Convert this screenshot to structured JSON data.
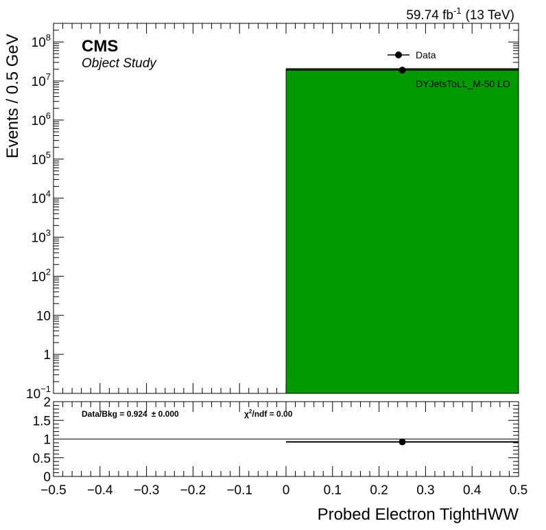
{
  "header": {
    "lumi": "59.74 fb",
    "lumi_exp": "-1",
    "energy": "(13 TeV)",
    "experiment": "CMS",
    "subtitle": "Object Study"
  },
  "chart_data": [
    {
      "type": "bar",
      "panel": "main",
      "ylabel": "Events / 0.5 GeV",
      "yscale": "log",
      "ylim": [
        0.1,
        300000000
      ],
      "xlim": [
        -0.5,
        0.5
      ],
      "ytick_labels": [
        {
          "value": 0.1,
          "base": "10",
          "exp": "−1"
        },
        {
          "value": 1,
          "base": "1",
          "exp": ""
        },
        {
          "value": 10,
          "base": "10",
          "exp": ""
        },
        {
          "value": 100,
          "base": "10",
          "exp": "2"
        },
        {
          "value": 1000,
          "base": "10",
          "exp": "3"
        },
        {
          "value": 10000,
          "base": "10",
          "exp": "4"
        },
        {
          "value": 100000,
          "base": "10",
          "exp": "5"
        },
        {
          "value": 1000000,
          "base": "10",
          "exp": "6"
        },
        {
          "value": 10000000,
          "base": "10",
          "exp": "7"
        },
        {
          "value": 100000000,
          "base": "10",
          "exp": "8"
        }
      ],
      "series": [
        {
          "name": "Data",
          "kind": "points",
          "color": "#000000",
          "x": [
            0.25
          ],
          "y": [
            19000000
          ],
          "xerr": [
            0.25
          ]
        },
        {
          "name": "DYJetsToLL_M-50 LO",
          "kind": "stack",
          "color": "#009900",
          "bins": [
            [
              0.0,
              0.5
            ]
          ],
          "values": [
            20500000
          ]
        }
      ],
      "legend": {
        "placement": "top-right",
        "entries": [
          "Data",
          "DYJetsToLL_M-50 LO"
        ]
      }
    },
    {
      "type": "scatter",
      "panel": "ratio",
      "xlabel": "Probed Electron TightHWW",
      "xlim": [
        -0.5,
        0.5
      ],
      "ylim": [
        0,
        2
      ],
      "xticks": [
        -0.5,
        -0.4,
        -0.3,
        -0.2,
        -0.1,
        0,
        0.1,
        0.2,
        0.3,
        0.4,
        0.5
      ],
      "xtick_labels": [
        "−0.5",
        "−0.4",
        "−0.3",
        "−0.2",
        "−0.1",
        "0",
        "0.1",
        "0.2",
        "0.3",
        "0.4",
        "0.5"
      ],
      "yticks": [
        0,
        0.5,
        1,
        1.5,
        2
      ],
      "ytick_labels": [
        "0",
        "0.5",
        "1",
        "1.5",
        "2"
      ],
      "reference_line": 1,
      "points": [
        {
          "x": 0.25,
          "y": 0.924,
          "xerr": 0.25
        }
      ],
      "annotations": {
        "ratio_text": "Data/Bkg = 0.924",
        "ratio_err": "± 0.000",
        "chi2_symbol": "χ",
        "chi2_exp": "2",
        "chi2_text": "/ndf = 0.00"
      }
    }
  ]
}
